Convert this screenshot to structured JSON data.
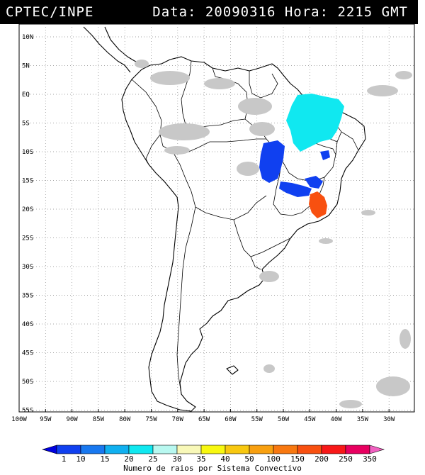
{
  "header": {
    "source": "CPTEC/INPE",
    "datetime": "Data: 20090316 Hora: 2215 GMT"
  },
  "map": {
    "lon_range": [
      -100,
      -25
    ],
    "lat_range": [
      -56,
      14
    ],
    "lat_ticks": [
      "10N",
      "5N",
      "EQ",
      "5S",
      "10S",
      "15S",
      "20S",
      "25S",
      "30S",
      "35S",
      "40S",
      "45S",
      "50S",
      "55S"
    ],
    "lon_ticks": [
      "100W",
      "95W",
      "90W",
      "85W",
      "80W",
      "75W",
      "70W",
      "65W",
      "60W",
      "55W",
      "50W",
      "45W",
      "40W",
      "35W",
      "30W"
    ],
    "grid": true
  },
  "legend": {
    "values": [
      "1",
      "10",
      "15",
      "20",
      "25",
      "30",
      "35",
      "40",
      "50",
      "100",
      "150",
      "200",
      "250",
      "350"
    ],
    "colors": [
      "#0000e0",
      "#1040f0",
      "#1878f0",
      "#10b0f0",
      "#10e8f0",
      "#b8f8f0",
      "#f8f8b8",
      "#f8f810",
      "#f8c810",
      "#f8a010",
      "#f87810",
      "#f85010",
      "#f81818",
      "#e80060",
      "#f060c0"
    ],
    "title": "Numero de raios por Sistema Convectivo"
  }
}
